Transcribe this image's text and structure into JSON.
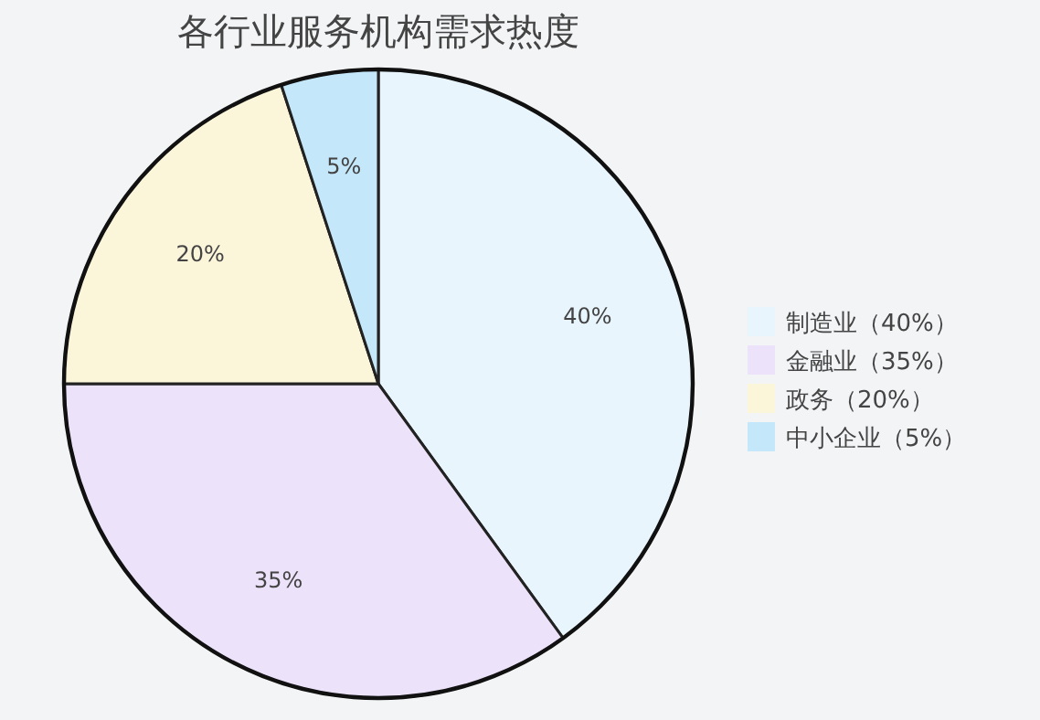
{
  "chart_data": {
    "type": "pie",
    "title": "各行业服务机构需求热度",
    "categories": [
      "制造业（40%）",
      "金融业（35%）",
      "政务（20%）",
      "中小企业（5%）"
    ],
    "values": [
      40,
      35,
      20,
      5
    ],
    "value_labels": [
      "40%",
      "35%",
      "20%",
      "5%"
    ],
    "colors": [
      "#e8f5fd",
      "#ece2fa",
      "#fbf5da",
      "#c4e7fa"
    ],
    "legend": "right"
  }
}
